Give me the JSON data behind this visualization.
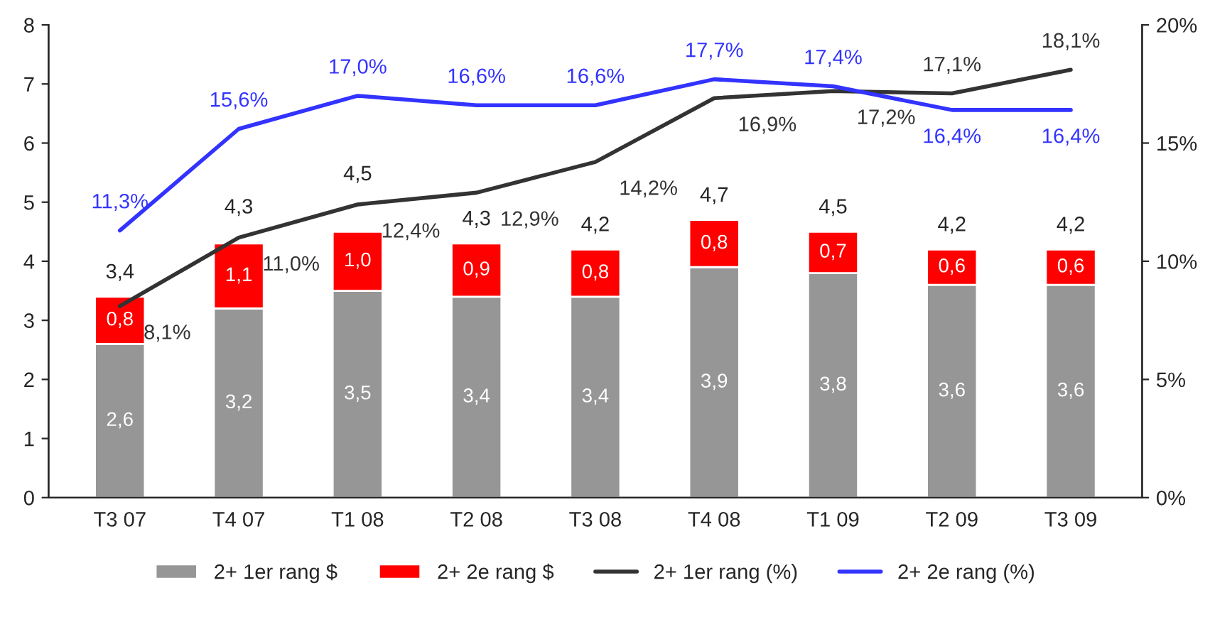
{
  "chart_data": {
    "type": "bar",
    "stacked": true,
    "categories": [
      "T3 07",
      "T4 07",
      "T1 08",
      "T2 08",
      "T3 08",
      "T4 08",
      "T1 09",
      "T2 09",
      "T3 09"
    ],
    "series": [
      {
        "name": "2+ 1er rang $",
        "color": "#969696",
        "values": [
          2.6,
          3.2,
          3.5,
          3.4,
          3.4,
          3.9,
          3.8,
          3.6,
          3.6
        ],
        "value_labels": [
          "2,6",
          "3,2",
          "3,5",
          "3,4",
          "3,4",
          "3,9",
          "3,8",
          "3,6",
          "3,6"
        ]
      },
      {
        "name": "2+ 2e rang $",
        "color": "#ff0000",
        "values": [
          0.8,
          1.1,
          1.0,
          0.9,
          0.8,
          0.8,
          0.7,
          0.6,
          0.6
        ],
        "value_labels": [
          "0,8",
          "1,1",
          "1,0",
          "0,9",
          "0,8",
          "0,8",
          "0,7",
          "0,6",
          "0,6"
        ]
      },
      {
        "name": "2+ 1er rang (%)",
        "type": "line",
        "axis": "y2",
        "color": "#333333",
        "values": [
          8.1,
          11.0,
          12.4,
          12.9,
          14.2,
          16.9,
          17.2,
          17.1,
          18.1
        ],
        "value_labels": [
          "8,1%",
          "11,0%",
          "12,4%",
          "12,9%",
          "14,2%",
          "16,9%",
          "17,2%",
          "17,1%",
          "18,1%"
        ]
      },
      {
        "name": "2+ 2e rang (%)",
        "type": "line",
        "axis": "y2",
        "color": "#3333ff",
        "values": [
          11.3,
          15.6,
          17.0,
          16.6,
          16.6,
          17.7,
          17.4,
          16.4,
          16.4
        ],
        "value_labels": [
          "11,3%",
          "15,6%",
          "17,0%",
          "16,6%",
          "16,6%",
          "17,7%",
          "17,4%",
          "16,4%",
          "16,4%"
        ]
      }
    ],
    "totals": [
      "3,4",
      "4,3",
      "4,5",
      "4,3",
      "4,2",
      "4,7",
      "4,5",
      "4,2",
      "4,2"
    ],
    "ylim": [
      0,
      8
    ],
    "yticks": [
      0,
      1,
      2,
      3,
      4,
      5,
      6,
      7,
      8
    ],
    "y2lim": [
      0,
      20
    ],
    "y2ticks": [
      {
        "value": 0,
        "label": "0%"
      },
      {
        "value": 5,
        "label": "5%"
      },
      {
        "value": 10,
        "label": "10%"
      },
      {
        "value": 15,
        "label": "15%"
      },
      {
        "value": 20,
        "label": "20%"
      }
    ],
    "legend": "bottom",
    "grid": false
  }
}
